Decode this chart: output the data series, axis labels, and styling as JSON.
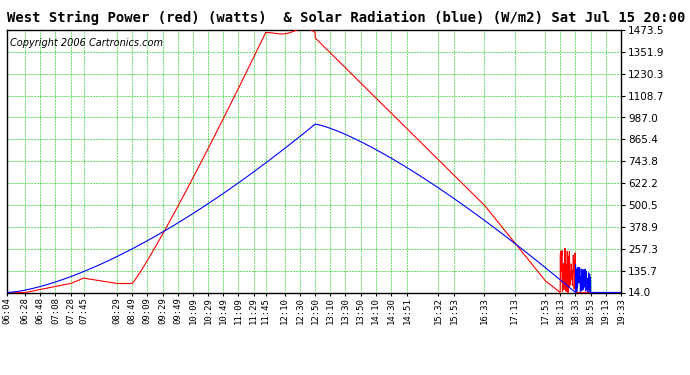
{
  "title": "West String Power (red) (watts)  & Solar Radiation (blue) (W/m2) Sat Jul 15 20:00",
  "copyright": "Copyright 2006 Cartronics.com",
  "background_color": "#ffffff",
  "plot_bg_color": "#ffffff",
  "grid_color": "#00cc00",
  "y_ticks": [
    14.0,
    135.7,
    257.3,
    378.9,
    500.5,
    622.2,
    743.8,
    865.4,
    987.0,
    1108.7,
    1230.3,
    1351.9,
    1473.5
  ],
  "y_min": 14.0,
  "y_max": 1473.5,
  "x_labels": [
    "06:04",
    "06:28",
    "06:48",
    "07:08",
    "07:28",
    "07:45",
    "08:29",
    "08:49",
    "09:09",
    "09:29",
    "09:49",
    "10:09",
    "10:29",
    "10:49",
    "11:09",
    "11:29",
    "11:45",
    "12:10",
    "12:30",
    "12:50",
    "13:10",
    "13:30",
    "13:50",
    "14:10",
    "14:30",
    "14:51",
    "15:32",
    "15:53",
    "16:33",
    "17:13",
    "17:53",
    "18:13",
    "18:33",
    "18:53",
    "19:13",
    "19:33"
  ],
  "red_color": "#ff0000",
  "blue_color": "#0000ff",
  "title_fontsize": 10,
  "copyright_fontsize": 7,
  "tick_label_fontsize": 6.5,
  "y_label_fontsize": 7.5
}
